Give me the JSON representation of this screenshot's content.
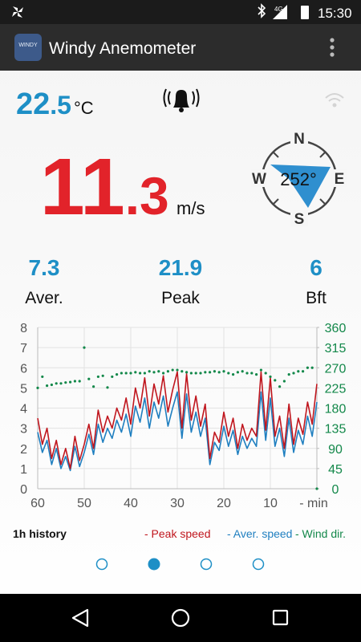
{
  "status_bar": {
    "network": "4G",
    "time": "15:30"
  },
  "app_bar": {
    "logo": "WINDY",
    "title": "Windy Anemometer"
  },
  "temperature": {
    "integer": "22",
    "decimal": ".5",
    "unit": "°C"
  },
  "speed": {
    "integer": "11",
    "decimal": ".3",
    "unit": "m/s"
  },
  "compass": {
    "north": "N",
    "east": "E",
    "south": "S",
    "west": "W",
    "direction": "252°"
  },
  "stats": [
    {
      "value": "7.3",
      "label": "Aver."
    },
    {
      "value": "21.9",
      "label": "Peak"
    },
    {
      "value": "6",
      "label": "Bft"
    }
  ],
  "chart_data": {
    "type": "line",
    "title": "1h history",
    "x": [
      60,
      59,
      58,
      57,
      56,
      55,
      54,
      53,
      52,
      51,
      50,
      49,
      48,
      47,
      46,
      45,
      44,
      43,
      42,
      41,
      40,
      39,
      38,
      37,
      36,
      35,
      34,
      33,
      32,
      31,
      30,
      29,
      28,
      27,
      26,
      25,
      24,
      23,
      22,
      21,
      20,
      19,
      18,
      17,
      16,
      15,
      14,
      13,
      12,
      11,
      10,
      9,
      8,
      7,
      6,
      5,
      4,
      3,
      2,
      1,
      0
    ],
    "xlim": [
      60,
      0
    ],
    "xticks": [
      60,
      50,
      40,
      30,
      20,
      10,
      {
        "value": 0,
        "label": "- min"
      }
    ],
    "ylim": [
      0,
      8
    ],
    "yticks": [
      0,
      1,
      2,
      3,
      4,
      5,
      6,
      7,
      8
    ],
    "y2lim": [
      0,
      360
    ],
    "y2ticks": [
      0,
      45,
      90,
      135,
      180,
      225,
      270,
      315,
      360
    ],
    "grid": true,
    "series": [
      {
        "name": "- Peak speed",
        "color": "#c0161e",
        "values": [
          3.5,
          2.2,
          3.0,
          1.5,
          2.4,
          1.2,
          2.0,
          1.0,
          2.6,
          1.4,
          2.2,
          3.2,
          2.0,
          3.9,
          2.8,
          3.6,
          3.0,
          4.0,
          3.4,
          4.5,
          3.2,
          5.0,
          4.0,
          5.5,
          3.6,
          5.2,
          4.2,
          5.6,
          3.8,
          4.9,
          5.8,
          3.0,
          5.7,
          3.4,
          4.6,
          3.1,
          4.2,
          1.5,
          2.8,
          2.3,
          3.8,
          2.6,
          3.5,
          2.0,
          3.2,
          2.4,
          3.0,
          2.6,
          5.8,
          2.9,
          5.5,
          2.6,
          3.6,
          2.0,
          4.2,
          2.2,
          3.5,
          2.7,
          4.3,
          3.2,
          5.2
        ]
      },
      {
        "name": "- Aver. speed",
        "color": "#1f7fc0",
        "values": [
          2.8,
          1.8,
          2.4,
          1.2,
          2.0,
          1.0,
          1.6,
          0.9,
          2.1,
          1.1,
          1.8,
          2.7,
          1.7,
          3.2,
          2.3,
          3.0,
          2.5,
          3.4,
          2.8,
          3.7,
          2.6,
          4.1,
          3.3,
          4.5,
          3.0,
          4.3,
          3.5,
          4.6,
          3.1,
          4.0,
          4.8,
          2.5,
          4.7,
          2.8,
          3.8,
          2.6,
          3.5,
          1.2,
          2.3,
          1.9,
          3.1,
          2.1,
          2.9,
          1.7,
          2.6,
          2.0,
          2.5,
          2.1,
          4.8,
          2.4,
          4.5,
          2.1,
          3.0,
          1.6,
          3.5,
          1.8,
          2.9,
          2.2,
          3.6,
          2.6,
          4.3
        ]
      },
      {
        "name": "- Wind dir.",
        "color": "#13884a",
        "axis": "y2",
        "values": [
          225,
          250,
          230,
          232,
          235,
          235,
          237,
          238,
          240,
          240,
          315,
          245,
          228,
          250,
          252,
          226,
          250,
          255,
          258,
          258,
          258,
          260,
          258,
          258,
          262,
          260,
          262,
          258,
          262,
          265,
          265,
          262,
          260,
          258,
          258,
          258,
          260,
          260,
          262,
          260,
          262,
          258,
          255,
          260,
          262,
          258,
          258,
          255,
          265,
          258,
          250,
          242,
          228,
          240,
          255,
          258,
          262,
          262,
          270,
          270,
          0
        ]
      }
    ]
  }
}
